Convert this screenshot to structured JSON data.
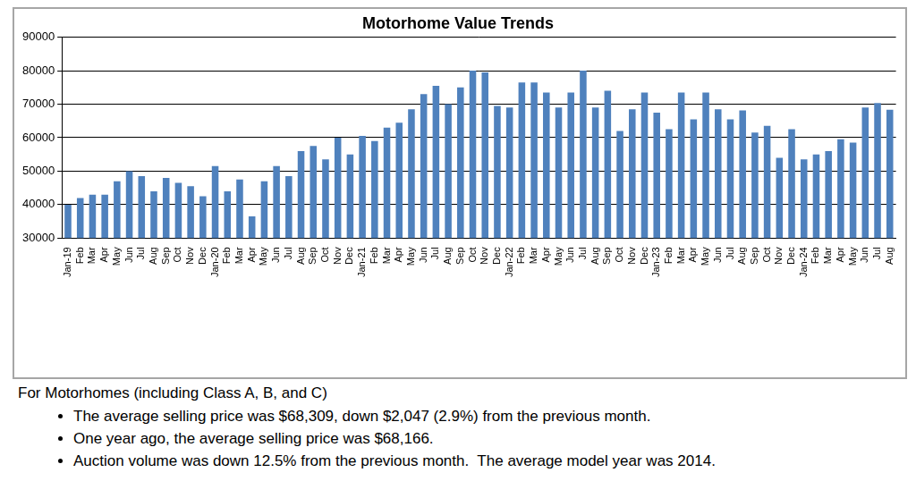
{
  "chart_data": {
    "type": "bar",
    "title": "Motorhome Value Trends",
    "categories": [
      "Jan-19",
      "Feb",
      "Mar",
      "Apr",
      "May",
      "Jun",
      "Jul",
      "Aug",
      "Sep",
      "Oct",
      "Nov",
      "Dec",
      "Jan-20",
      "Feb",
      "Mar",
      "Apr",
      "May",
      "Jun",
      "Jul",
      "Aug",
      "Sep",
      "Oct",
      "Nov",
      "Dec",
      "Jan-21",
      "Feb",
      "Mar",
      "Apr",
      "May",
      "Jun",
      "Jul",
      "Aug",
      "Sep",
      "Oct",
      "Nov",
      "Dec",
      "Jan-22",
      "Feb",
      "Mar",
      "Apr",
      "May",
      "Jun",
      "Jul",
      "Aug",
      "Sep",
      "Oct",
      "Nov",
      "Dec",
      "Jan-23",
      "Feb",
      "Mar",
      "Apr",
      "May",
      "Jun",
      "Jul",
      "Aug",
      "Sep",
      "Oct",
      "Nov",
      "Dec",
      "Jan-24",
      "Feb",
      "Mar",
      "Apr",
      "May",
      "Jun",
      "Jul",
      "Aug"
    ],
    "values": [
      40000,
      42000,
      43000,
      43000,
      47000,
      50000,
      48500,
      44000,
      48000,
      46500,
      45500,
      42500,
      51500,
      44000,
      47500,
      36500,
      47000,
      51500,
      48500,
      56000,
      57500,
      53500,
      60000,
      55000,
      60500,
      59000,
      63000,
      64500,
      68500,
      73000,
      75500,
      70000,
      75000,
      80000,
      79500,
      69500,
      69000,
      76500,
      76500,
      73500,
      69000,
      73500,
      80000,
      69000,
      74000,
      62000,
      68500,
      73500,
      67500,
      62500,
      73500,
      65500,
      73500,
      68500,
      65500,
      68166,
      61500,
      63500,
      54000,
      62500,
      53500,
      55000,
      56000,
      59500,
      58500,
      69000,
      70356,
      68309
    ],
    "color": "#4f81bd",
    "ylim": [
      30000,
      90000
    ],
    "yticks": [
      30000,
      40000,
      50000,
      60000,
      70000,
      80000,
      90000
    ],
    "grid": true
  },
  "caption": {
    "heading": "For Motorhomes (including Class A, B, and C)",
    "bullets": [
      "The average selling price was $68,309, down $2,047 (2.9%) from the previous month.",
      "One year ago, the average selling price was $68,166.",
      "Auction volume was down 12.5% from the previous month.  The average model year was 2014."
    ]
  }
}
